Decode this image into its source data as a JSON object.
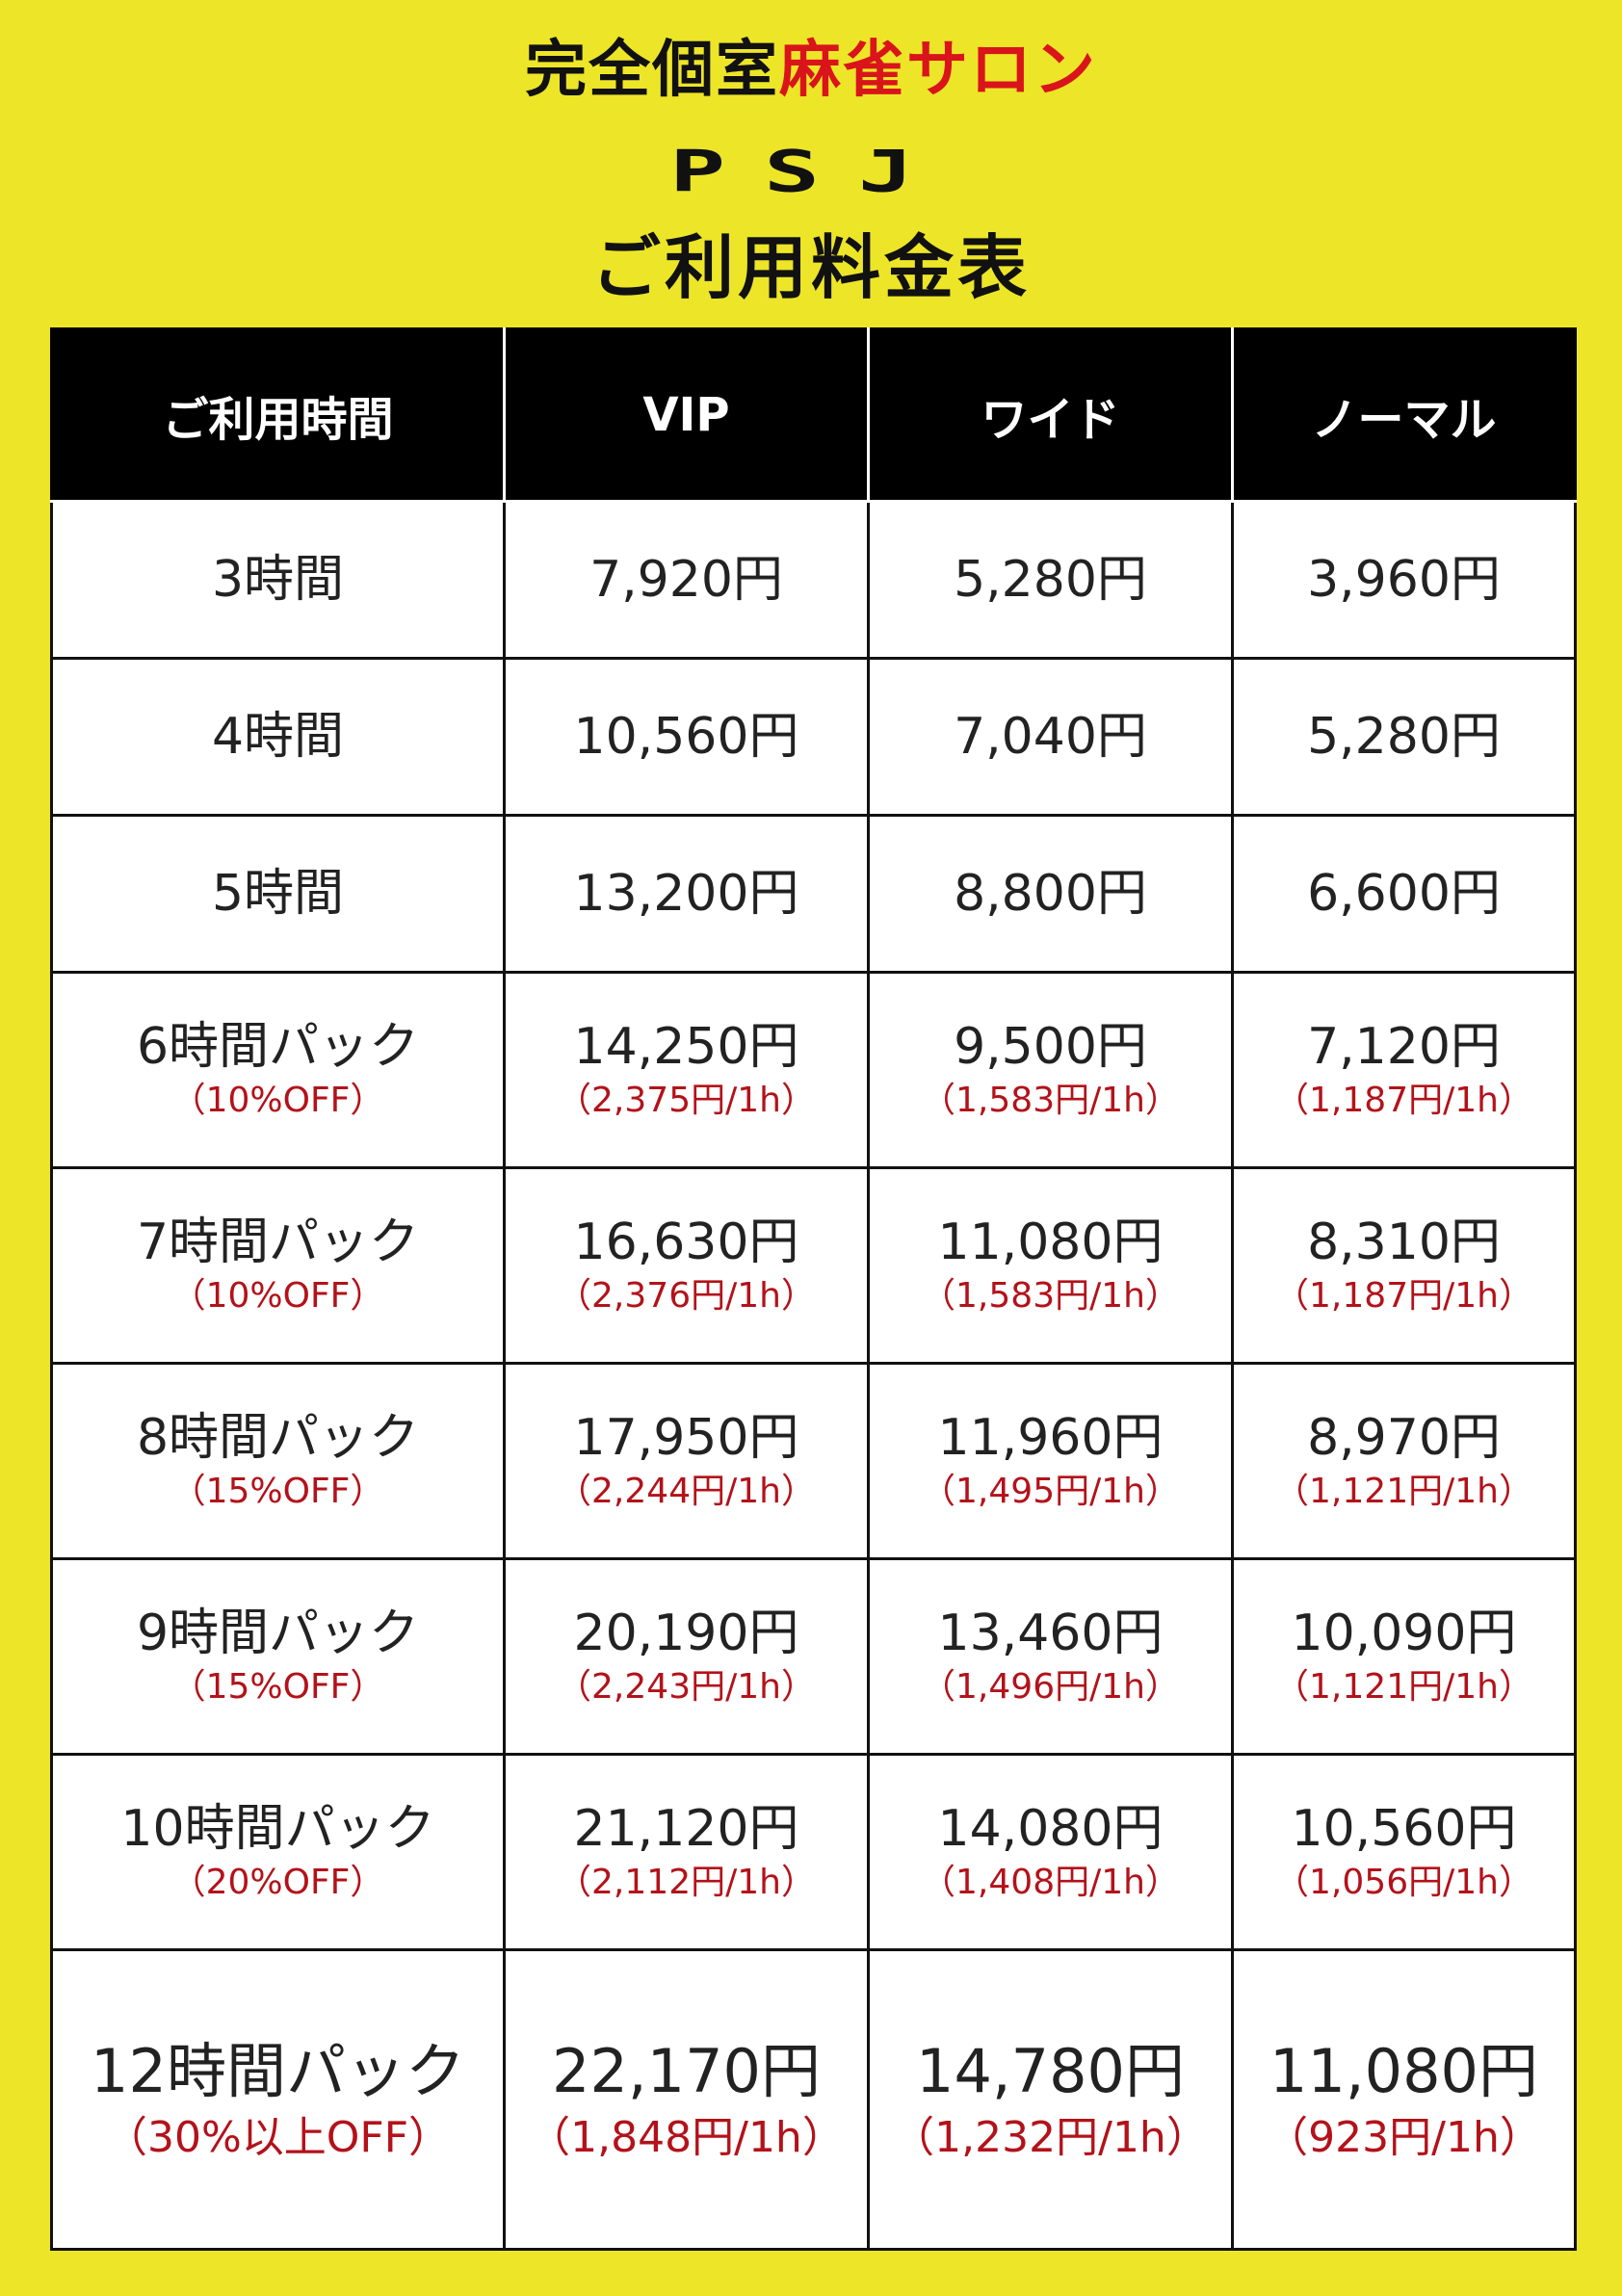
{
  "header": {
    "subtitle_black": "完全個室",
    "subtitle_red": "麻雀サロン",
    "logo": "PSJ",
    "title": "ご利用料金表"
  },
  "table": {
    "columns": [
      "ご利用時間",
      "VIP",
      "ワイド",
      "ノーマル"
    ],
    "rows": [
      {
        "time": "3時間",
        "discount": "",
        "vip": "7,920円",
        "vip_rate": "",
        "wide": "5,280円",
        "wide_rate": "",
        "normal": "3,960円",
        "normal_rate": ""
      },
      {
        "time": "4時間",
        "discount": "",
        "vip": "10,560円",
        "vip_rate": "",
        "wide": "7,040円",
        "wide_rate": "",
        "normal": "5,280円",
        "normal_rate": ""
      },
      {
        "time": "5時間",
        "discount": "",
        "vip": "13,200円",
        "vip_rate": "",
        "wide": "8,800円",
        "wide_rate": "",
        "normal": "6,600円",
        "normal_rate": ""
      },
      {
        "time": "6時間パック",
        "discount": "（10%OFF）",
        "vip": "14,250円",
        "vip_rate": "（2,375円/1h）",
        "wide": "9,500円",
        "wide_rate": "（1,583円/1h）",
        "normal": "7,120円",
        "normal_rate": "（1,187円/1h）"
      },
      {
        "time": "7時間パック",
        "discount": "（10%OFF）",
        "vip": "16,630円",
        "vip_rate": "（2,376円/1h）",
        "wide": "11,080円",
        "wide_rate": "（1,583円/1h）",
        "normal": "8,310円",
        "normal_rate": "（1,187円/1h）"
      },
      {
        "time": "8時間パック",
        "discount": "（15%OFF）",
        "vip": "17,950円",
        "vip_rate": "（2,244円/1h）",
        "wide": "11,960円",
        "wide_rate": "（1,495円/1h）",
        "normal": "8,970円",
        "normal_rate": "（1,121円/1h）"
      },
      {
        "time": "9時間パック",
        "discount": "（15%OFF）",
        "vip": "20,190円",
        "vip_rate": "（2,243円/1h）",
        "wide": "13,460円",
        "wide_rate": "（1,496円/1h）",
        "normal": "10,090円",
        "normal_rate": "（1,121円/1h）"
      },
      {
        "time": "10時間パック",
        "discount": "（20%OFF）",
        "vip": "21,120円",
        "vip_rate": "（2,112円/1h）",
        "wide": "14,080円",
        "wide_rate": "（1,408円/1h）",
        "normal": "10,560円",
        "normal_rate": "（1,056円/1h）"
      },
      {
        "time": "12時間パック",
        "discount": "（30%以上OFF）",
        "vip": "22,170円",
        "vip_rate": "（1,848円/1h）",
        "wide": "14,780円",
        "wide_rate": "（1,232円/1h）",
        "normal": "11,080円",
        "normal_rate": "（923円/1h）"
      }
    ]
  },
  "colors": {
    "background": "#ede528",
    "accent_red": "#d9141b",
    "rate_red": "#b3121a",
    "header_bg": "#000000"
  }
}
